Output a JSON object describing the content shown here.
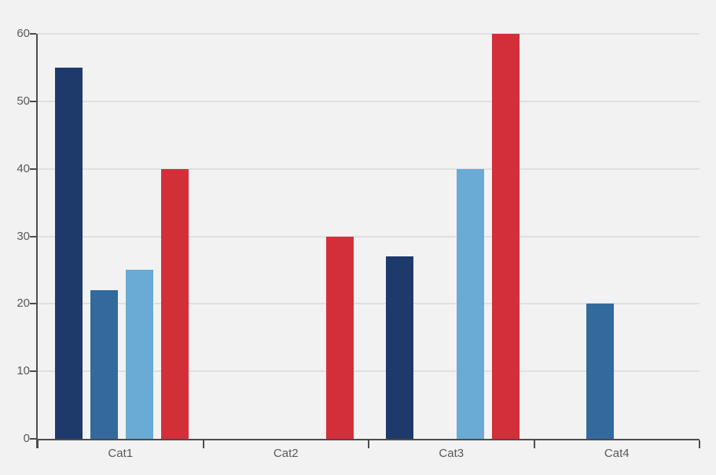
{
  "chart_data": {
    "type": "bar",
    "title": "",
    "xlabel": "",
    "ylabel": "",
    "categories": [
      "Cat1",
      "Cat2",
      "Cat3",
      "Cat4"
    ],
    "series": [
      {
        "name": "navy",
        "color": "#1e3a6b",
        "values": [
          55,
          0,
          27,
          0
        ]
      },
      {
        "name": "medium-blue",
        "color": "#336a9e",
        "values": [
          22,
          0,
          0,
          20
        ]
      },
      {
        "name": "light-blue",
        "color": "#69abd4",
        "values": [
          25,
          0,
          40,
          0
        ]
      },
      {
        "name": "red",
        "color": "#d32f39",
        "values": [
          40,
          30,
          60,
          0
        ]
      }
    ],
    "ylim": [
      0,
      60
    ],
    "ytick_step": 10,
    "ytick_labels": [
      "0",
      "10",
      "20",
      "30",
      "40",
      "50",
      "60"
    ],
    "grid": true,
    "legend": false,
    "missing_bars_note": "zero values render as no bar"
  },
  "style": {
    "background": "#f2f2f2",
    "gridline": "#e0e0e0",
    "axis": "#4d4d4d",
    "label": "#595959"
  }
}
